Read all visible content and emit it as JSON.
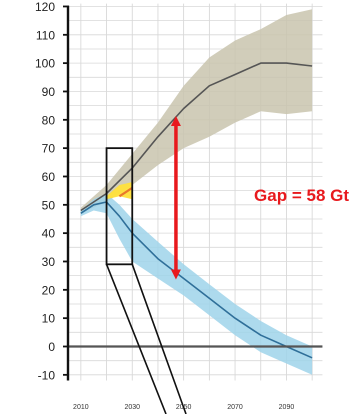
{
  "chart_data": {
    "type": "area",
    "title": "",
    "xlabel": "",
    "ylabel": "",
    "xlim": [
      2005,
      2105
    ],
    "ylim": [
      -12,
      122
    ],
    "grid": true,
    "y_ticks": [
      "120",
      "110",
      "100",
      "90",
      "80",
      "70",
      "60",
      "50",
      "40",
      "30",
      "20",
      "10",
      "0",
      "-10"
    ],
    "x_tick_labels": [
      {
        "value": 2010,
        "label": "2010"
      },
      {
        "value": 2030,
        "label": "2030"
      },
      {
        "value": 2050,
        "label": "2050"
      },
      {
        "value": 2070,
        "label": "2070"
      },
      {
        "value": 2090,
        "label": "2090"
      }
    ],
    "series": [
      {
        "role": "baseline_median",
        "x": [
          2010,
          2020,
          2030,
          2040,
          2050,
          2060,
          2070,
          2080,
          2090,
          2100
        ],
        "y": [
          48,
          54,
          63,
          74,
          84,
          92,
          96,
          100,
          100,
          99
        ],
        "color": "#555555"
      },
      {
        "role": "baseline_range",
        "x": [
          2010,
          2020,
          2030,
          2040,
          2050,
          2060,
          2070,
          2080,
          2090,
          2100
        ],
        "low": [
          47,
          51,
          57,
          64,
          70,
          74,
          79,
          83,
          82,
          83
        ],
        "high": [
          49,
          57,
          68,
          79,
          92,
          102,
          108,
          112,
          117,
          119
        ],
        "color": "#c9c4ae"
      },
      {
        "role": "pathway_median",
        "x": [
          2010,
          2015,
          2020,
          2025,
          2030,
          2040,
          2050,
          2060,
          2070,
          2080,
          2090,
          2100
        ],
        "y": [
          47,
          50,
          51,
          46,
          40,
          31,
          24,
          17,
          10,
          4,
          0,
          -4
        ],
        "color": "#2f6f99"
      },
      {
        "role": "pathway_range",
        "x": [
          2010,
          2015,
          2020,
          2025,
          2030,
          2040,
          2050,
          2060,
          2070,
          2080,
          2090,
          2100
        ],
        "low": [
          46,
          48,
          47,
          38,
          30,
          24,
          18,
          11,
          4,
          -2,
          -6,
          -10
        ],
        "high": [
          48,
          52,
          54,
          50,
          45,
          37,
          29,
          22,
          15,
          9,
          4,
          0
        ],
        "color": "#9fd3ea"
      },
      {
        "role": "pledge_yellow",
        "x": [
          2020,
          2025,
          2030
        ],
        "low": [
          52,
          53,
          52
        ],
        "high": [
          53,
          57,
          58
        ],
        "color": "#ffe03a"
      },
      {
        "role": "pledge_orange",
        "x": [
          2025,
          2030
        ],
        "y": [
          53,
          56
        ],
        "color": "#e8782a"
      }
    ],
    "annotations": [
      {
        "text": "Gap = 58 Gt",
        "x": 2047,
        "y_top": 81,
        "y_bottom": 24,
        "color": "#e8191d"
      }
    ],
    "zoom_box": {
      "x": [
        2020,
        2030
      ],
      "y": [
        29,
        70
      ]
    },
    "zero_line": 0
  }
}
